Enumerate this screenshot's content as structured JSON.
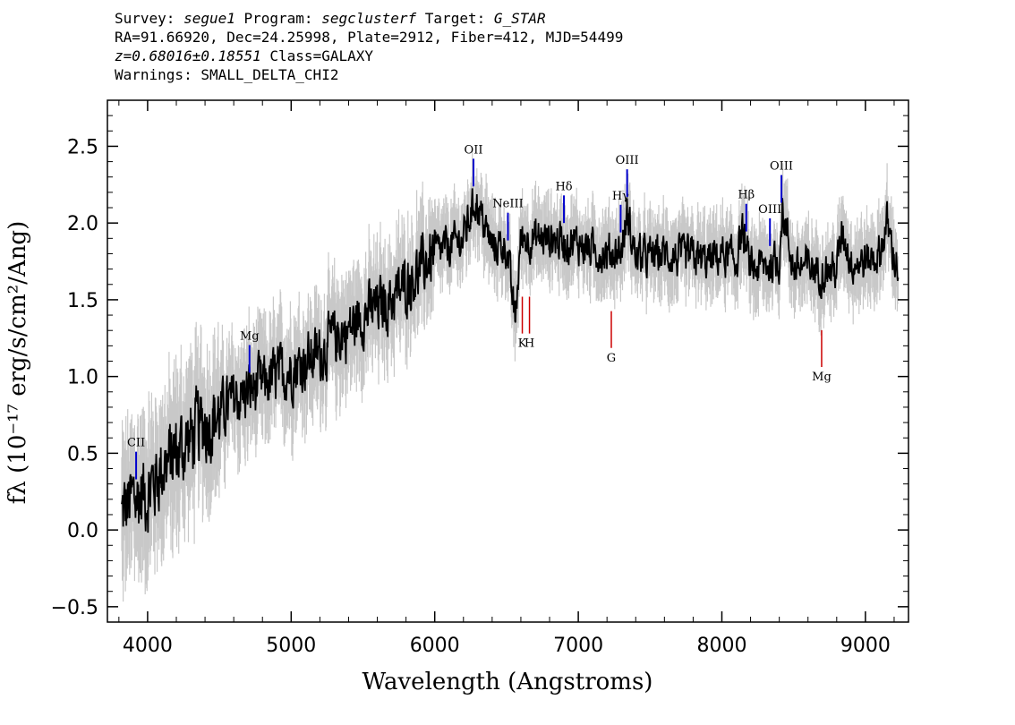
{
  "header": {
    "line1": {
      "survey_label": "Survey: ",
      "survey": "segue1",
      "program_label": " Program: ",
      "program": "segclusterf",
      "target_label": " Target: ",
      "target": "G_STAR"
    },
    "line2": "RA=91.66920, Dec=24.25998, Plate=2912, Fiber=412, MJD=54499",
    "line3": {
      "redshift": "z=0.68016±0.18551",
      "class": " Class=GALAXY"
    },
    "line4": "Warnings: SMALL_DELTA_CHI2"
  },
  "chart_data": {
    "type": "line",
    "title": "",
    "xlabel": "Wavelength (Angstroms)",
    "ylabel": "fλ (10⁻¹⁷ erg/s/cm²/Ang)",
    "xlim": [
      3720,
      9300
    ],
    "ylim": [
      -0.6,
      2.8
    ],
    "x_ticks": [
      4000,
      5000,
      6000,
      7000,
      8000,
      9000
    ],
    "y_ticks": [
      -0.5,
      0.0,
      0.5,
      1.0,
      1.5,
      2.0,
      2.5
    ],
    "y_tick_labels": [
      "−0.5",
      "0.0",
      "0.5",
      "1.0",
      "1.5",
      "2.0",
      "2.5"
    ],
    "grid": false,
    "colors": {
      "flux": "#000000",
      "error_band": "#c8c8c8",
      "emission": "#0000cc",
      "absorption": "#cc0000"
    },
    "series": [
      {
        "role": "flux",
        "x": [
          3820,
          3900,
          4000,
          4100,
          4200,
          4300,
          4400,
          4500,
          4600,
          4700,
          4800,
          4900,
          5000,
          5100,
          5200,
          5300,
          5400,
          5500,
          5600,
          5700,
          5800,
          5900,
          6000,
          6100,
          6200,
          6280,
          6400,
          6500,
          6560,
          6600,
          6700,
          6800,
          6900,
          7000,
          7100,
          7200,
          7300,
          7340,
          7400,
          7500,
          7600,
          7700,
          7800,
          7900,
          8000,
          8100,
          8140,
          8200,
          8300,
          8400,
          8420,
          8500,
          8600,
          8700,
          8800,
          8840,
          8900,
          9000,
          9100,
          9150,
          9200,
          9230
        ],
        "y": [
          0.1,
          0.2,
          0.25,
          0.4,
          0.5,
          0.6,
          0.7,
          0.75,
          0.85,
          0.9,
          0.95,
          1.0,
          1.05,
          1.1,
          1.15,
          1.25,
          1.3,
          1.4,
          1.45,
          1.5,
          1.6,
          1.7,
          1.8,
          1.85,
          1.9,
          2.15,
          1.85,
          1.85,
          1.35,
          1.9,
          1.9,
          1.9,
          1.88,
          1.87,
          1.82,
          1.8,
          1.82,
          2.05,
          1.78,
          1.78,
          1.8,
          1.77,
          1.78,
          1.75,
          1.8,
          1.75,
          1.95,
          1.7,
          1.72,
          1.75,
          2.1,
          1.7,
          1.72,
          1.68,
          1.7,
          1.95,
          1.75,
          1.75,
          1.8,
          2.0,
          1.78,
          1.7
        ]
      }
    ],
    "spectral_lines": {
      "emission": [
        {
          "label": "CII",
          "x": 3920
        },
        {
          "label": "Mg",
          "x": 4710
        },
        {
          "label": "OII",
          "x": 6270
        },
        {
          "label": "NeIII",
          "x": 6510
        },
        {
          "label": "Hδ",
          "x": 6900
        },
        {
          "label": "Hγ",
          "x": 7295
        },
        {
          "label": "OIII",
          "x": 7340
        },
        {
          "label": "Hβ",
          "x": 8170
        },
        {
          "label": "OIII",
          "x": 8335
        },
        {
          "label": "OIII",
          "x": 8415
        }
      ],
      "absorption": [
        {
          "label": "K",
          "x": 6610
        },
        {
          "label": "H",
          "x": 6660
        },
        {
          "label": "G",
          "x": 7230
        },
        {
          "label": "Mg",
          "x": 8695
        }
      ]
    }
  }
}
